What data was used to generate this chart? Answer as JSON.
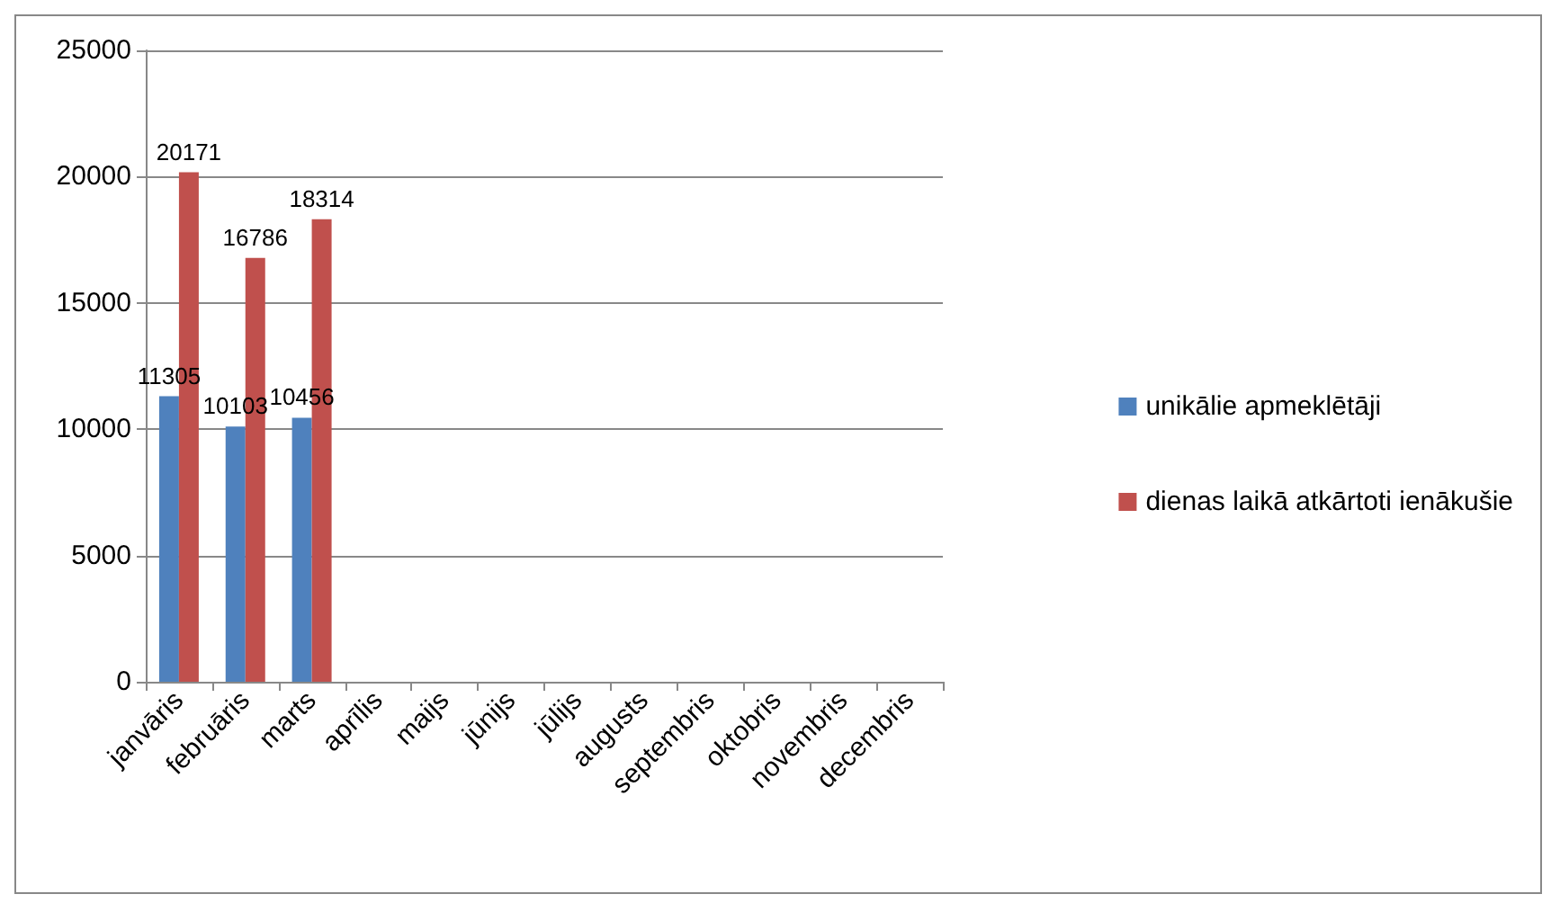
{
  "chart_data": {
    "type": "bar",
    "categories": [
      "janvāris",
      "februāris",
      "marts",
      "aprīlis",
      "maijs",
      "jūnijs",
      "jūlijs",
      "augusts",
      "septembris",
      "oktobris",
      "novembris",
      "decembris"
    ],
    "series": [
      {
        "name": "unikālie apmeklētāji",
        "color": "#4f81bd",
        "values": [
          11305,
          10103,
          10456,
          null,
          null,
          null,
          null,
          null,
          null,
          null,
          null,
          null
        ]
      },
      {
        "name": "dienas laikā atkārtoti ienākušie",
        "color": "#c0504d",
        "values": [
          20171,
          16786,
          18314,
          null,
          null,
          null,
          null,
          null,
          null,
          null,
          null,
          null
        ]
      }
    ],
    "ylim": [
      0,
      25000
    ],
    "yticks": [
      0,
      5000,
      10000,
      15000,
      20000,
      25000
    ],
    "grid": "y",
    "legend": "right",
    "data_labels": true
  }
}
